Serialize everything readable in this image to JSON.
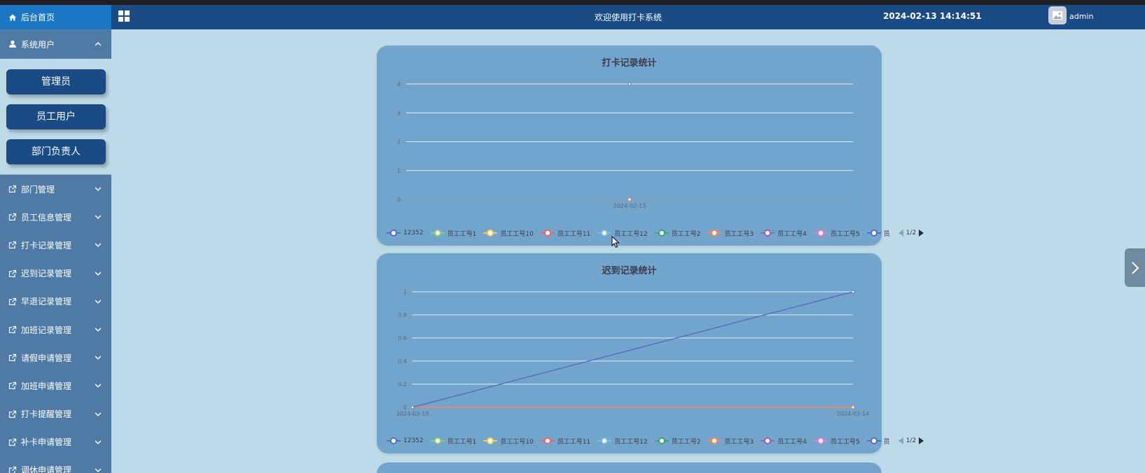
{
  "sidebar": {
    "home_label": "后台首页",
    "group_label": "系统用户",
    "sub_buttons": [
      "管理员",
      "员工用户",
      "部门负责人"
    ],
    "items": [
      "部门管理",
      "员工信息管理",
      "打卡记录管理",
      "迟到记录管理",
      "早退记录管理",
      "加班记录管理",
      "请假申请管理",
      "加班申请管理",
      "打卡提醒管理",
      "补卡申请管理",
      "调休申请管理"
    ]
  },
  "header": {
    "welcome": "欢迎使用打卡系统",
    "datetime": "2024-02-13 14:14:51",
    "username": "admin"
  },
  "legend_page": "1/2",
  "legend_series": [
    {
      "name": "12352",
      "color": "#5470c6"
    },
    {
      "name": "员工工号1",
      "color": "#91cc75"
    },
    {
      "name": "员工工号10",
      "color": "#fac858"
    },
    {
      "name": "员工工号11",
      "color": "#ee6666"
    },
    {
      "name": "员工工号12",
      "color": "#73c0de"
    },
    {
      "name": "员工工号2",
      "color": "#3ba272"
    },
    {
      "name": "员工工号3",
      "color": "#fc8452"
    },
    {
      "name": "员工工号4",
      "color": "#9a60b4"
    },
    {
      "name": "员工工号5",
      "color": "#ea7ccc"
    },
    {
      "name": "员",
      "color": "#5470c6"
    }
  ],
  "chart_data": [
    {
      "type": "line",
      "title": "打卡记录统计",
      "x": [
        "2024-02-13"
      ],
      "ylim": [
        0,
        4
      ],
      "yticks": [
        "0",
        "1",
        "2",
        "3",
        "4"
      ],
      "grid": true,
      "legend_position": "bottom",
      "series": [
        {
          "name": "12352",
          "color": "#5470c6",
          "values": [
            4
          ]
        },
        {
          "name": "员工工号3",
          "color": "#fc8452",
          "values": [
            0
          ]
        }
      ]
    },
    {
      "type": "line",
      "title": "迟到记录统计",
      "x": [
        "2024-02-13",
        "2024-02-14"
      ],
      "ylim": [
        0,
        1
      ],
      "yticks": [
        "0",
        "0.2",
        "0.4",
        "0.6",
        "0.8",
        "1"
      ],
      "grid": true,
      "legend_position": "bottom",
      "series": [
        {
          "name": "12352",
          "color": "#5470c6",
          "values": [
            0,
            1
          ]
        },
        {
          "name": "员工工号3",
          "color": "#fc8452",
          "values": [
            0,
            0
          ]
        }
      ]
    }
  ]
}
